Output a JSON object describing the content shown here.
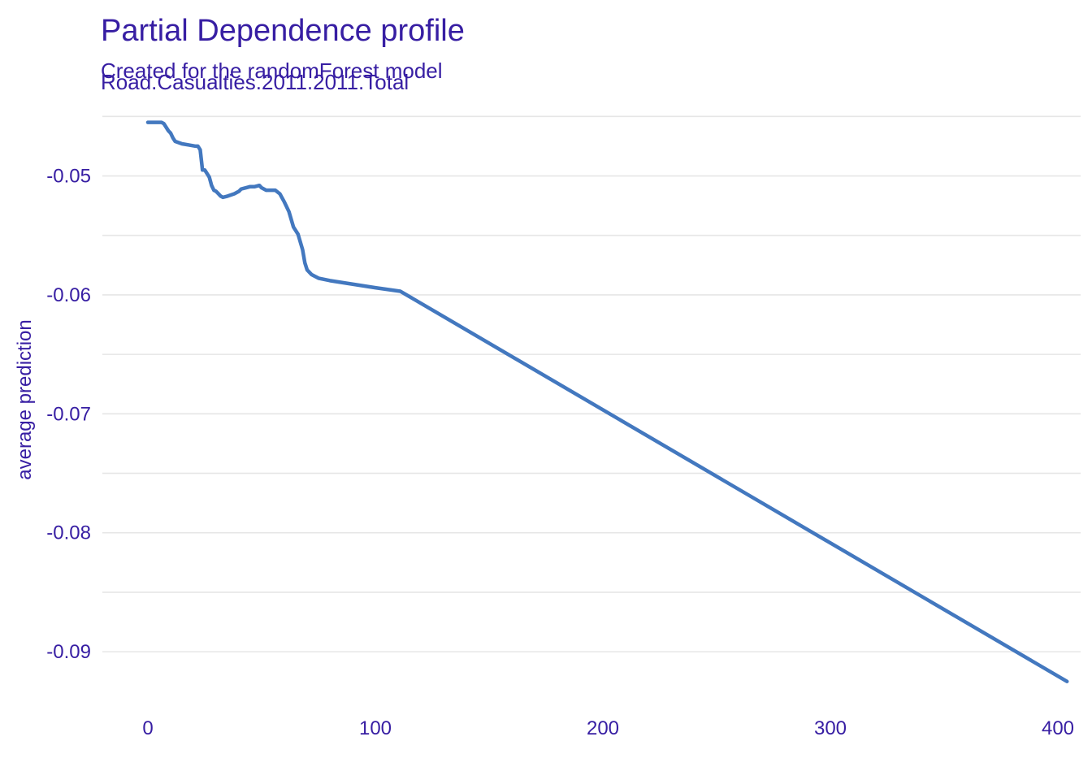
{
  "chart_data": {
    "type": "line",
    "title": "Partial Dependence profile",
    "subtitle_lines": [
      "Created for the randomForest model",
      "Road.Casualties.2011.2011.Total"
    ],
    "xlabel": "",
    "ylabel": "average prediction",
    "xlim": [
      -20,
      410
    ],
    "ylim": [
      -0.0945,
      -0.0445
    ],
    "xticks": [
      0,
      100,
      200,
      300,
      400
    ],
    "yticks": [
      -0.05,
      -0.06,
      -0.07,
      -0.08,
      -0.09
    ],
    "ytick_labels": [
      "-0.05",
      "-0.06",
      "-0.07",
      "-0.08",
      "-0.09"
    ],
    "grid": true,
    "colors": {
      "text": "#371ea3",
      "line": "#4378bf",
      "grid": "#e6e6e6"
    },
    "series": [
      {
        "x": [
          0,
          6,
          7,
          9,
          10,
          11,
          12,
          15,
          18,
          21,
          22,
          23,
          24,
          25,
          27,
          28,
          29,
          30,
          31,
          32,
          33,
          35,
          38,
          40,
          41,
          43,
          45,
          47,
          49,
          50,
          52,
          54,
          56,
          58,
          60,
          62,
          64,
          66,
          68,
          69,
          70,
          72,
          75,
          80,
          90,
          100,
          111,
          404
        ],
        "y": [
          -0.0455,
          -0.0455,
          -0.0456,
          -0.0462,
          -0.0464,
          -0.0468,
          -0.0471,
          -0.0473,
          -0.0474,
          -0.0475,
          -0.0475,
          -0.0478,
          -0.0495,
          -0.0495,
          -0.0501,
          -0.0508,
          -0.0512,
          -0.0513,
          -0.0515,
          -0.0517,
          -0.0518,
          -0.0517,
          -0.0515,
          -0.0513,
          -0.0511,
          -0.051,
          -0.0509,
          -0.0509,
          -0.0508,
          -0.051,
          -0.0512,
          -0.0512,
          -0.0512,
          -0.0515,
          -0.0522,
          -0.053,
          -0.0543,
          -0.0549,
          -0.0562,
          -0.0573,
          -0.0579,
          -0.0583,
          -0.0586,
          -0.0588,
          -0.0591,
          -0.0594,
          -0.0597,
          -0.0925
        ]
      }
    ]
  }
}
